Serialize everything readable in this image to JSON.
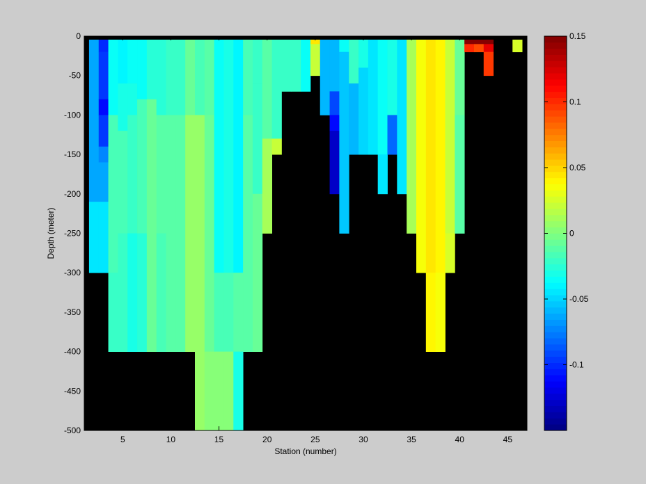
{
  "chart_data": {
    "type": "heatmap",
    "title": "",
    "xlabel": "Station (number)",
    "ylabel": "Depth (meter)",
    "xlim": [
      1,
      47
    ],
    "ylim": [
      -500,
      0
    ],
    "x_ticks": [
      5,
      10,
      15,
      20,
      25,
      30,
      35,
      40,
      45
    ],
    "y_ticks": [
      0,
      -50,
      -100,
      -150,
      -200,
      -250,
      -300,
      -350,
      -400,
      -450,
      -500
    ],
    "depth_step": 10,
    "colorbar": {
      "colormap": "jet",
      "min": -0.15,
      "max": 0.15,
      "ticks": [
        0.15,
        0.1,
        0.05,
        0,
        -0.05,
        -0.1
      ],
      "tick_labels": [
        "0.15",
        "0.1",
        "0.05",
        "0",
        "-0.05",
        "-0.1"
      ]
    },
    "no_data_color": "#000000",
    "stations": [
      {
        "station": 2,
        "max_depth": 300,
        "segments": [
          [
            0,
            210,
            -0.065
          ],
          [
            210,
            300,
            -0.045
          ]
        ]
      },
      {
        "station": 3,
        "max_depth": 300,
        "segments": [
          [
            0,
            20,
            -0.1
          ],
          [
            20,
            80,
            -0.095
          ],
          [
            80,
            100,
            -0.11
          ],
          [
            100,
            140,
            -0.095
          ],
          [
            140,
            160,
            -0.075
          ],
          [
            160,
            210,
            -0.065
          ],
          [
            210,
            300,
            -0.045
          ]
        ]
      },
      {
        "station": 4,
        "max_depth": 400,
        "segments": [
          [
            0,
            100,
            -0.035
          ],
          [
            100,
            300,
            -0.015
          ],
          [
            300,
            400,
            -0.02
          ]
        ]
      },
      {
        "station": 5,
        "max_depth": 400,
        "segments": [
          [
            0,
            60,
            -0.04
          ],
          [
            60,
            120,
            -0.03
          ],
          [
            120,
            250,
            -0.015
          ],
          [
            250,
            400,
            -0.02
          ]
        ]
      },
      {
        "station": 6,
        "max_depth": 400,
        "segments": [
          [
            0,
            60,
            -0.035
          ],
          [
            60,
            100,
            -0.03
          ],
          [
            100,
            250,
            -0.02
          ],
          [
            250,
            400,
            -0.03
          ]
        ]
      },
      {
        "station": 7,
        "max_depth": 400,
        "segments": [
          [
            0,
            80,
            -0.035
          ],
          [
            80,
            250,
            -0.015
          ],
          [
            250,
            400,
            -0.025
          ]
        ]
      },
      {
        "station": 8,
        "max_depth": 400,
        "segments": [
          [
            0,
            80,
            -0.025
          ],
          [
            80,
            250,
            -0.005
          ],
          [
            250,
            400,
            -0.005
          ]
        ]
      },
      {
        "station": 9,
        "max_depth": 400,
        "segments": [
          [
            0,
            100,
            -0.025
          ],
          [
            100,
            250,
            -0.01
          ],
          [
            250,
            400,
            -0.015
          ]
        ]
      },
      {
        "station": 10,
        "max_depth": 400,
        "segments": [
          [
            0,
            100,
            -0.02
          ],
          [
            100,
            400,
            -0.01
          ]
        ]
      },
      {
        "station": 11,
        "max_depth": 400,
        "segments": [
          [
            0,
            100,
            -0.02
          ],
          [
            100,
            400,
            -0.01
          ]
        ]
      },
      {
        "station": 12,
        "max_depth": 400,
        "segments": [
          [
            0,
            100,
            -0.005
          ],
          [
            100,
            400,
            0.005
          ]
        ]
      },
      {
        "station": 13,
        "max_depth": 500,
        "segments": [
          [
            0,
            100,
            -0.015
          ],
          [
            100,
            500,
            0.005
          ]
        ]
      },
      {
        "station": 14,
        "max_depth": 500,
        "segments": [
          [
            0,
            100,
            -0.01
          ],
          [
            100,
            400,
            -0.005
          ],
          [
            400,
            500,
            0.003
          ]
        ]
      },
      {
        "station": 15,
        "max_depth": 500,
        "segments": [
          [
            0,
            300,
            -0.035
          ],
          [
            300,
            400,
            -0.015
          ],
          [
            400,
            500,
            0.003
          ]
        ]
      },
      {
        "station": 16,
        "max_depth": 500,
        "segments": [
          [
            0,
            300,
            -0.03
          ],
          [
            300,
            400,
            -0.015
          ],
          [
            400,
            500,
            0.003
          ]
        ]
      },
      {
        "station": 17,
        "max_depth": 500,
        "segments": [
          [
            0,
            300,
            -0.04
          ],
          [
            300,
            400,
            -0.01
          ],
          [
            400,
            500,
            -0.03
          ]
        ]
      },
      {
        "station": 18,
        "max_depth": 400,
        "segments": [
          [
            0,
            100,
            -0.015
          ],
          [
            100,
            400,
            -0.01
          ]
        ]
      },
      {
        "station": 19,
        "max_depth": 400,
        "segments": [
          [
            0,
            60,
            -0.02
          ],
          [
            60,
            200,
            -0.02
          ],
          [
            200,
            400,
            -0.005
          ]
        ]
      },
      {
        "station": 20,
        "max_depth": 250,
        "segments": [
          [
            0,
            130,
            -0.01
          ],
          [
            130,
            250,
            0.01
          ]
        ]
      },
      {
        "station": 21,
        "max_depth": 150,
        "segments": [
          [
            0,
            130,
            -0.02
          ],
          [
            130,
            150,
            0.02
          ]
        ]
      },
      {
        "station": 22,
        "max_depth": 70,
        "segments": [
          [
            0,
            70,
            -0.02
          ]
        ]
      },
      {
        "station": 23,
        "max_depth": 70,
        "segments": [
          [
            0,
            70,
            -0.02
          ]
        ]
      },
      {
        "station": 24,
        "max_depth": 70,
        "segments": [
          [
            0,
            70,
            -0.035
          ]
        ]
      },
      {
        "station": 25,
        "max_depth": 50,
        "segments": [
          [
            0,
            10,
            0.045
          ],
          [
            10,
            50,
            0.02
          ]
        ]
      },
      {
        "station": 26,
        "max_depth": 100,
        "segments": [
          [
            0,
            100,
            -0.06
          ]
        ]
      },
      {
        "station": 27,
        "max_depth": 200,
        "segments": [
          [
            0,
            70,
            -0.06
          ],
          [
            70,
            100,
            -0.09
          ],
          [
            100,
            120,
            -0.11
          ],
          [
            120,
            200,
            -0.13
          ]
        ]
      },
      {
        "station": 28,
        "max_depth": 250,
        "segments": [
          [
            0,
            20,
            -0.035
          ],
          [
            20,
            250,
            -0.055
          ]
        ]
      },
      {
        "station": 29,
        "max_depth": 150,
        "segments": [
          [
            0,
            60,
            -0.02
          ],
          [
            60,
            150,
            -0.06
          ]
        ]
      },
      {
        "station": 30,
        "max_depth": 150,
        "segments": [
          [
            0,
            40,
            -0.03
          ],
          [
            40,
            150,
            -0.05
          ]
        ]
      },
      {
        "station": 31,
        "max_depth": 150,
        "segments": [
          [
            0,
            150,
            -0.045
          ]
        ]
      },
      {
        "station": 32,
        "max_depth": 200,
        "segments": [
          [
            0,
            150,
            -0.035
          ],
          [
            150,
            200,
            -0.045
          ]
        ]
      },
      {
        "station": 33,
        "max_depth": 150,
        "segments": [
          [
            0,
            100,
            -0.03
          ],
          [
            100,
            150,
            -0.08
          ]
        ]
      },
      {
        "station": 34,
        "max_depth": 200,
        "segments": [
          [
            0,
            100,
            -0.045
          ],
          [
            100,
            200,
            -0.045
          ]
        ]
      },
      {
        "station": 35,
        "max_depth": 250,
        "segments": [
          [
            0,
            250,
            0.01
          ]
        ]
      },
      {
        "station": 36,
        "max_depth": 300,
        "segments": [
          [
            0,
            250,
            0.035
          ],
          [
            250,
            300,
            0.035
          ]
        ]
      },
      {
        "station": 37,
        "max_depth": 400,
        "segments": [
          [
            0,
            300,
            0.045
          ],
          [
            300,
            400,
            0.04
          ]
        ]
      },
      {
        "station": 38,
        "max_depth": 400,
        "segments": [
          [
            0,
            300,
            0.04
          ],
          [
            300,
            400,
            0.035
          ]
        ]
      },
      {
        "station": 39,
        "max_depth": 300,
        "segments": [
          [
            0,
            250,
            0.02
          ],
          [
            250,
            300,
            0.025
          ]
        ]
      },
      {
        "station": 40,
        "max_depth": 250,
        "segments": [
          [
            0,
            100,
            -0.005
          ],
          [
            100,
            250,
            -0.01
          ]
        ]
      },
      {
        "station": 41,
        "max_depth": 20,
        "segments": [
          [
            0,
            10,
            0.15
          ],
          [
            10,
            20,
            0.1
          ]
        ]
      },
      {
        "station": 42,
        "max_depth": 20,
        "segments": [
          [
            0,
            10,
            0.15
          ],
          [
            10,
            20,
            0.09
          ]
        ]
      },
      {
        "station": 43,
        "max_depth": 50,
        "segments": [
          [
            0,
            10,
            0.15
          ],
          [
            10,
            20,
            0.12
          ],
          [
            20,
            50,
            0.095
          ]
        ]
      },
      {
        "station": 44,
        "max_depth": 0,
        "segments": []
      },
      {
        "station": 45,
        "max_depth": 0,
        "segments": []
      },
      {
        "station": 46,
        "max_depth": 20,
        "segments": [
          [
            0,
            20,
            0.025
          ]
        ]
      }
    ]
  }
}
